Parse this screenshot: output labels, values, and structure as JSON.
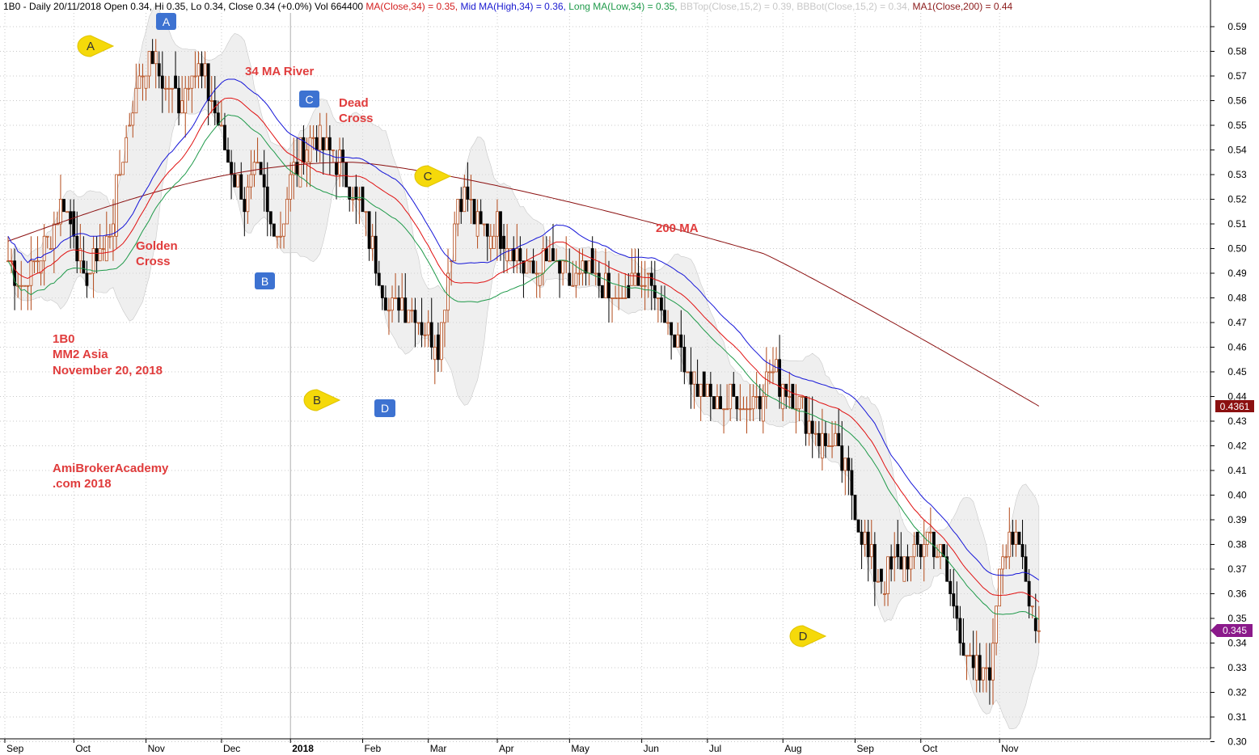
{
  "header": {
    "parts": [
      {
        "text": "1B0 - Daily 20/11/2018 Open 0.34, Hi 0.35, Lo 0.34, Close 0.34 (+0.0%) Vol 664400 ",
        "color": "#000000"
      },
      {
        "text": "MA(Close,34) = 0.35, ",
        "color": "#d42020"
      },
      {
        "text": "Mid MA(High,34) = 0.36, ",
        "color": "#1a1ad0"
      },
      {
        "text": "Long MA(Low,34) = 0.35, ",
        "color": "#1f9a4a"
      },
      {
        "text": "BBTop(Close,15,2) = 0.39, ",
        "color": "#c8c8c8"
      },
      {
        "text": "BBBot(Close,15,2) = 0.34, ",
        "color": "#c8c8c8"
      },
      {
        "text": "MA1(Close,200) = 0.44",
        "color": "#8b1a1a"
      }
    ]
  },
  "colors": {
    "ma34": "#e01010",
    "mid_ma": "#1515d8",
    "long_ma": "#1f9a4a",
    "ma200": "#8b1010",
    "band_fill": "#dcdcdc",
    "bull_candle": "#b34a1a",
    "bear_candle": "#000000",
    "annotation": "#e03c3c",
    "label_box": "#3d72d1",
    "bubble": "#f5d90a",
    "price_tag_ma200": "#8b1010",
    "price_tag_last": "#8b1a8b"
  },
  "chart_data": {
    "type": "candlestick",
    "y_axis": {
      "side": "right",
      "range": [
        0.3,
        0.595
      ],
      "ticks": [
        "0.30",
        "0.31",
        "0.32",
        "0.33",
        "0.34",
        "0.35",
        "0.36",
        "0.37",
        "0.38",
        "0.39",
        "0.40",
        "0.41",
        "0.42",
        "0.43",
        "0.44",
        "0.45",
        "0.46",
        "0.47",
        "0.48",
        "0.49",
        "0.50",
        "0.51",
        "0.52",
        "0.53",
        "0.54",
        "0.55",
        "0.56",
        "0.57",
        "0.58",
        "0.59"
      ]
    },
    "x_axis": {
      "labels": [
        {
          "text": "Sep",
          "bar": 0
        },
        {
          "text": "Oct",
          "bar": 21
        },
        {
          "text": "Nov",
          "bar": 43
        },
        {
          "text": "Dec",
          "bar": 66
        },
        {
          "text": "2018",
          "bar": 87,
          "bold": true
        },
        {
          "text": "Feb",
          "bar": 109
        },
        {
          "text": "Mar",
          "bar": 129
        },
        {
          "text": "Apr",
          "bar": 150
        },
        {
          "text": "May",
          "bar": 172
        },
        {
          "text": "Jun",
          "bar": 194
        },
        {
          "text": "Jul",
          "bar": 214
        },
        {
          "text": "Aug",
          "bar": 237
        },
        {
          "text": "Sep",
          "bar": 259
        },
        {
          "text": "Oct",
          "bar": 279
        },
        {
          "text": "Nov",
          "bar": 303
        }
      ]
    },
    "bar_count": 315,
    "price_keypoints": [
      [
        0,
        0.495
      ],
      [
        5,
        0.485
      ],
      [
        8,
        0.495
      ],
      [
        12,
        0.502
      ],
      [
        16,
        0.52
      ],
      [
        20,
        0.51
      ],
      [
        23,
        0.485
      ],
      [
        27,
        0.497
      ],
      [
        30,
        0.502
      ],
      [
        34,
        0.53
      ],
      [
        37,
        0.55
      ],
      [
        40,
        0.57
      ],
      [
        44,
        0.578
      ],
      [
        48,
        0.565
      ],
      [
        52,
        0.56
      ],
      [
        56,
        0.573
      ],
      [
        60,
        0.568
      ],
      [
        64,
        0.55
      ],
      [
        68,
        0.533
      ],
      [
        72,
        0.52
      ],
      [
        76,
        0.53
      ],
      [
        80,
        0.51
      ],
      [
        83,
        0.508
      ],
      [
        86,
        0.53
      ],
      [
        90,
        0.54
      ],
      [
        94,
        0.545
      ],
      [
        98,
        0.54
      ],
      [
        102,
        0.532
      ],
      [
        106,
        0.52
      ],
      [
        110,
        0.505
      ],
      [
        113,
        0.49
      ],
      [
        116,
        0.475
      ],
      [
        120,
        0.478
      ],
      [
        124,
        0.473
      ],
      [
        128,
        0.465
      ],
      [
        131,
        0.46
      ],
      [
        134,
        0.49
      ],
      [
        137,
        0.52
      ],
      [
        140,
        0.522
      ],
      [
        144,
        0.505
      ],
      [
        148,
        0.51
      ],
      [
        152,
        0.502
      ],
      [
        156,
        0.495
      ],
      [
        160,
        0.49
      ],
      [
        164,
        0.495
      ],
      [
        168,
        0.49
      ],
      [
        172,
        0.487
      ],
      [
        176,
        0.49
      ],
      [
        180,
        0.485
      ],
      [
        184,
        0.48
      ],
      [
        188,
        0.478
      ],
      [
        192,
        0.49
      ],
      [
        196,
        0.485
      ],
      [
        200,
        0.475
      ],
      [
        204,
        0.46
      ],
      [
        208,
        0.45
      ],
      [
        212,
        0.44
      ],
      [
        216,
        0.437
      ],
      [
        220,
        0.438
      ],
      [
        224,
        0.437
      ],
      [
        228,
        0.44
      ],
      [
        232,
        0.452
      ],
      [
        236,
        0.445
      ],
      [
        240,
        0.437
      ],
      [
        244,
        0.43
      ],
      [
        248,
        0.423
      ],
      [
        252,
        0.42
      ],
      [
        256,
        0.405
      ],
      [
        259,
        0.39
      ],
      [
        262,
        0.375
      ],
      [
        266,
        0.365
      ],
      [
        270,
        0.37
      ],
      [
        274,
        0.373
      ],
      [
        278,
        0.378
      ],
      [
        281,
        0.385
      ],
      [
        284,
        0.375
      ],
      [
        287,
        0.36
      ],
      [
        290,
        0.345
      ],
      [
        293,
        0.33
      ],
      [
        297,
        0.327
      ],
      [
        300,
        0.335
      ],
      [
        302,
        0.375
      ],
      [
        305,
        0.385
      ],
      [
        308,
        0.378
      ],
      [
        311,
        0.36
      ],
      [
        314,
        0.345
      ]
    ],
    "last_price": "0.345",
    "ma200_last": "0.4361",
    "series": [
      {
        "name": "MA(Close,34)",
        "color_key": "ma34"
      },
      {
        "name": "Mid MA(High,34)",
        "color_key": "mid_ma"
      },
      {
        "name": "Long MA(Low,34)",
        "color_key": "long_ma"
      },
      {
        "name": "BBTop(Close,15,2)",
        "color_key": "band_fill"
      },
      {
        "name": "BBBot(Close,15,2)",
        "color_key": "band_fill"
      },
      {
        "name": "MA1(Close,200)",
        "color_key": "ma200"
      }
    ]
  },
  "annotations": {
    "ma_river": "34 MA River",
    "dead_cross_1": "Dead",
    "dead_cross_2": "Cross",
    "golden_cross_1": "Golden",
    "golden_cross_2": "Cross",
    "ma200": "200 MA",
    "symbol": "1B0",
    "company": "MM2 Asia",
    "date": "November 20, 2018",
    "brand_1": "AmiBrokerAcademy",
    "brand_2": ".com 2018"
  },
  "labels": {
    "box_a": "A",
    "box_b": "B",
    "box_c": "C",
    "box_d": "D",
    "bubble_a": "A",
    "bubble_b": "B",
    "bubble_c": "C",
    "bubble_d": "D"
  }
}
